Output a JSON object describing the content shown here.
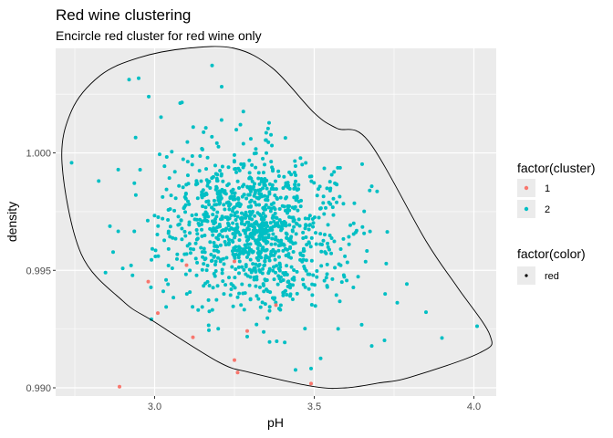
{
  "chart_data": {
    "type": "scatter",
    "title": "Red wine clustering",
    "subtitle": "Encircle red cluster for red wine only",
    "xlabel": "pH",
    "ylabel": "density",
    "xlim": [
      2.69,
      4.07
    ],
    "ylim": [
      0.98965,
      1.00445
    ],
    "x_ticks": [
      3.0,
      3.5,
      4.0
    ],
    "x_tick_labels": [
      "3.0",
      "3.5",
      "4.0"
    ],
    "y_ticks": [
      0.99,
      0.995,
      1.0
    ],
    "y_tick_labels": [
      "0.990",
      "0.995",
      "1.000"
    ],
    "grid": true,
    "legend_position": "right",
    "background_color": "#ebebeb",
    "legends": [
      {
        "title": "factor(cluster)",
        "entries": [
          {
            "label": "1",
            "color": "#f8766d"
          },
          {
            "label": "2",
            "color": "#00bfc4"
          }
        ]
      },
      {
        "title": "factor(color)",
        "entries": [
          {
            "label": "red",
            "color": "#000000"
          }
        ]
      }
    ],
    "series": [
      {
        "name": "1",
        "color": "#f8766d",
        "points": [
          [
            2.89,
            0.99005
          ],
          [
            2.98,
            0.99452
          ],
          [
            3.01,
            0.99318
          ],
          [
            3.12,
            0.99215
          ],
          [
            3.26,
            0.99065
          ],
          [
            3.25,
            0.99118
          ],
          [
            3.29,
            0.99242
          ],
          [
            3.49,
            0.99018
          ],
          [
            3.1,
            0.99522
          ],
          [
            3.25,
            0.99538
          ],
          [
            3.38,
            0.99352
          ]
        ]
      },
      {
        "name": "2",
        "color": "#00bfc4",
        "summary": {
          "n": 1100,
          "x_mean": 3.31,
          "x_sd": 0.14,
          "y_mean": 0.99675,
          "y_sd": 0.00165
        },
        "points": [
          [
            2.74,
            0.99958
          ],
          [
            2.92,
            1.00312
          ],
          [
            2.95,
            1.00318
          ],
          [
            3.18,
            1.00372
          ],
          [
            3.21,
            1.00282
          ],
          [
            4.01,
            0.99262
          ],
          [
            3.9,
            0.99212
          ],
          [
            3.85,
            0.99322
          ],
          [
            3.76,
            0.99362
          ],
          [
            2.86,
            0.99688
          ],
          [
            2.87,
            0.99578
          ],
          [
            3.17,
            0.99245
          ],
          [
            3.52,
            0.99125
          ],
          [
            3.49,
            0.99082
          ],
          [
            3.72,
            0.99202
          ],
          [
            3.68,
            0.99178
          ],
          [
            3.58,
            0.99368
          ],
          [
            3.65,
            0.99952
          ],
          [
            3.68,
            0.99858
          ],
          [
            3.08,
            1.00212
          ],
          [
            3.02,
            1.00152
          ],
          [
            3.29,
            0.99218
          ],
          [
            3.36,
            0.99195
          ],
          [
            3.79,
            0.99442
          ],
          [
            3.63,
            0.99662
          ],
          [
            2.99,
            0.99292
          ]
        ]
      }
    ],
    "annotations": [
      {
        "type": "encircle",
        "cluster": "1",
        "color": "#000000",
        "path": [
          [
            2.71,
            0.99955
          ],
          [
            2.74,
            1.0018
          ],
          [
            2.83,
            1.0033
          ],
          [
            2.95,
            1.00405
          ],
          [
            3.1,
            1.00445
          ],
          [
            3.25,
            1.00445
          ],
          [
            3.37,
            1.0036
          ],
          [
            3.5,
            1.0017
          ],
          [
            3.57,
            1.00105
          ],
          [
            3.67,
            1.0005
          ],
          [
            3.85,
            0.99625
          ],
          [
            3.95,
            0.99425
          ],
          [
            4.05,
            0.99225
          ],
          [
            4.02,
            0.9915
          ],
          [
            3.8,
            0.99045
          ],
          [
            3.7,
            0.9902
          ],
          [
            3.6,
            0.99
          ],
          [
            3.5,
            0.99005
          ],
          [
            3.3,
            0.99065
          ],
          [
            3.2,
            0.9911
          ],
          [
            3.0,
            0.9928
          ],
          [
            2.9,
            0.9937
          ],
          [
            2.77,
            0.9957
          ]
        ]
      }
    ]
  }
}
